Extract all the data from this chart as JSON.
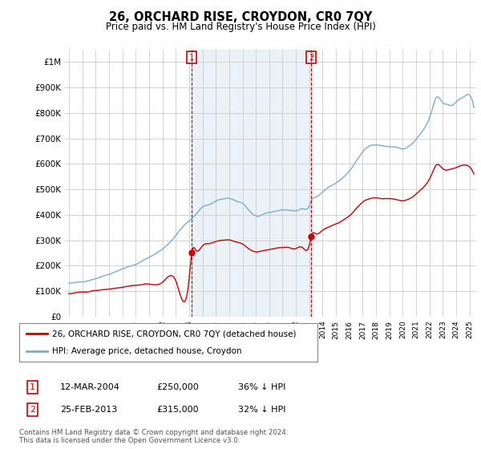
{
  "title": "26, ORCHARD RISE, CROYDON, CR0 7QY",
  "subtitle": "Price paid vs. HM Land Registry's House Price Index (HPI)",
  "legend_line1": "26, ORCHARD RISE, CROYDON, CR0 7QY (detached house)",
  "legend_line2": "HPI: Average price, detached house, Croydon",
  "footnote1": "Contains HM Land Registry data © Crown copyright and database right 2024.",
  "footnote2": "This data is licensed under the Open Government Licence v3.0.",
  "table_row1": [
    "1",
    "12-MAR-2004",
    "£250,000",
    "36% ↓ HPI"
  ],
  "table_row2": [
    "2",
    "25-FEB-2013",
    "£315,000",
    "32% ↓ HPI"
  ],
  "sale1_year": 2004.2,
  "sale1_price": 250000,
  "sale2_year": 2013.15,
  "sale2_price": 315000,
  "red_color": "#cc0000",
  "blue_color": "#7aadcf",
  "blue_fill": "#d6e8f5",
  "background_color": "#ffffff",
  "grid_color": "#cccccc",
  "ylim": [
    0,
    1050000
  ],
  "xlim_start": 1994.7,
  "xlim_end": 2025.5
}
